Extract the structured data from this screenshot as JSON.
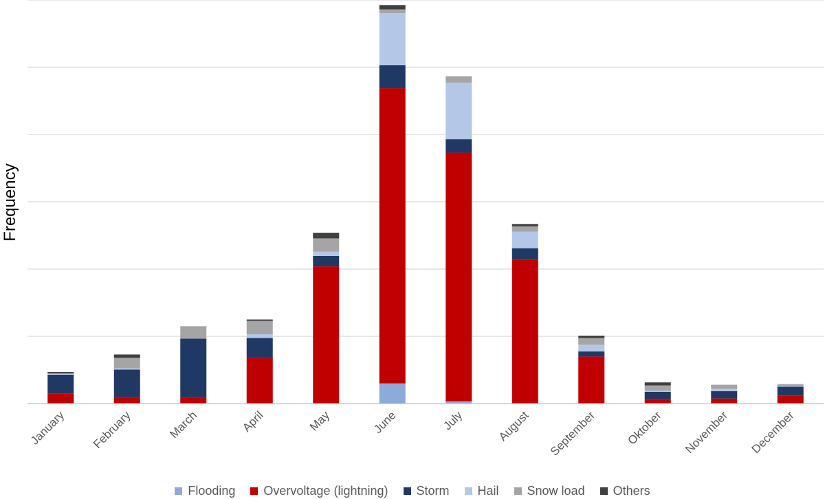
{
  "chart_data": {
    "type": "bar",
    "stacked": true,
    "title": "",
    "xlabel": "",
    "ylabel": "Frequency",
    "ylim": [
      0,
      12
    ],
    "grid": true,
    "legend_position": "bottom",
    "categories": [
      "January",
      "February",
      "March",
      "April",
      "May",
      "June",
      "July",
      "August",
      "September",
      "Oktober",
      "November",
      "December"
    ],
    "series": [
      {
        "name": "Flooding",
        "color": "#8EAADB",
        "values": [
          0,
          0,
          0,
          0,
          0,
          0.6,
          0.07,
          0,
          0,
          0,
          0,
          0
        ]
      },
      {
        "name": "Overvoltage (lightning)",
        "color": "#C00000",
        "values": [
          0.3,
          0.19,
          0.19,
          1.35,
          4.08,
          8.78,
          7.39,
          4.27,
          1.4,
          0.14,
          0.15,
          0.24
        ]
      },
      {
        "name": "Storm",
        "color": "#203864",
        "values": [
          0.56,
          0.82,
          1.74,
          0.6,
          0.31,
          0.68,
          0.4,
          0.35,
          0.15,
          0.21,
          0.22,
          0.26
        ]
      },
      {
        "name": "Hail",
        "color": "#B4C7E7",
        "values": [
          0.02,
          0.04,
          0,
          0.11,
          0.13,
          1.55,
          1.68,
          0.49,
          0.2,
          0.03,
          0.07,
          0.02
        ]
      },
      {
        "name": "Snow load",
        "color": "#A5A5A5",
        "values": [
          0.02,
          0.31,
          0.37,
          0.4,
          0.39,
          0.11,
          0.19,
          0.16,
          0.2,
          0.16,
          0.12,
          0.06
        ]
      },
      {
        "name": "Others",
        "color": "#404040",
        "values": [
          0.04,
          0.1,
          0,
          0.04,
          0.17,
          0.13,
          0,
          0.07,
          0.07,
          0.09,
          0,
          0
        ]
      }
    ]
  }
}
